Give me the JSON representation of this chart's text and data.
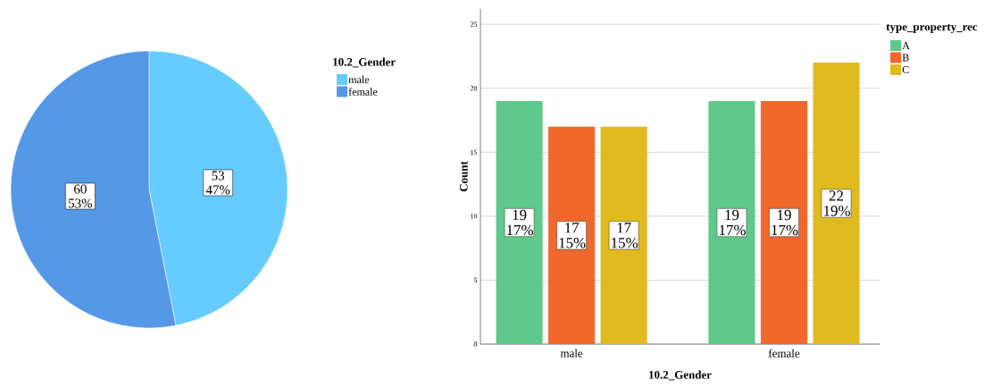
{
  "chart_data": [
    {
      "type": "pie",
      "categories": [
        "male",
        "female"
      ],
      "values": [
        53,
        60
      ],
      "colors": [
        "#66ccff",
        "#5598e6"
      ],
      "value_labels": [
        "53 47%",
        "60 53%"
      ],
      "legend_title": "10.2_Gender",
      "legend": "top right"
    },
    {
      "type": "bar",
      "categories": [
        "male",
        "female"
      ],
      "series": [
        {
          "name": "A",
          "color": "#5ec98a",
          "values": [
            19,
            19
          ],
          "value_labels": [
            "19 17%",
            "19 17%"
          ]
        },
        {
          "name": "B",
          "color": "#f0682b",
          "values": [
            17,
            19
          ],
          "value_labels": [
            "17 15%",
            "19 17%"
          ]
        },
        {
          "name": "C",
          "color": "#e0bb20",
          "values": [
            17,
            22
          ],
          "value_labels": [
            "17 15%",
            "22 19%"
          ]
        }
      ],
      "xlabel": "10.2_Gender",
      "ylabel": "Count",
      "ylim": [
        0,
        26.2
      ],
      "yticks": [
        0,
        5,
        10,
        15,
        20,
        25
      ],
      "grid": "y",
      "legend": "top right",
      "legend_title": "type_property_rec"
    }
  ]
}
